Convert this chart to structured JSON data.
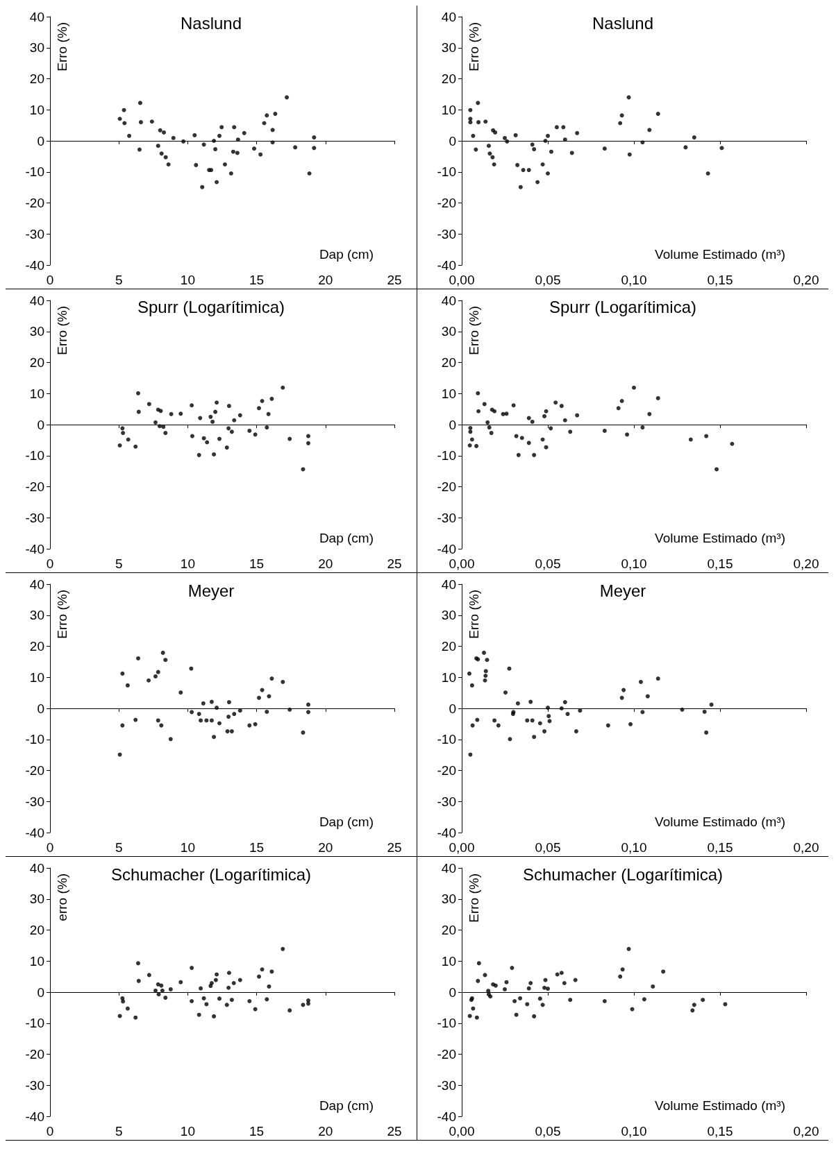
{
  "chart_data": [
    {
      "type": "scatter",
      "title": "Naslund",
      "xlabel": "Dap (cm)",
      "ylabel": "Erro (%)",
      "xlim": [
        0,
        25
      ],
      "xticks": [
        0,
        5,
        10,
        15,
        20,
        25
      ],
      "ylim": [
        -40,
        40
      ],
      "yticks": [
        -40,
        -30,
        -20,
        -10,
        0,
        10,
        20,
        30,
        40
      ],
      "marker": "circle",
      "color": "#000000",
      "x": [
        5.07,
        5.37,
        5.41,
        5.75,
        6.5,
        6.55,
        6.6,
        7.4,
        7.85,
        8.0,
        8.1,
        8.27,
        8.4,
        8.6,
        8.96,
        9.68,
        10.5,
        10.6,
        11.05,
        11.17,
        11.55,
        11.7,
        11.9,
        12.0,
        12.1,
        12.3,
        12.46,
        12.7,
        13.15,
        13.3,
        13.37,
        13.6,
        13.65,
        14.1,
        14.82,
        15.28,
        15.55,
        15.74,
        16.16,
        16.16,
        16.35,
        17.19,
        17.8,
        18.83,
        19.17,
        19.17
      ],
      "values": [
        7.1,
        9.9,
        5.7,
        1.6,
        -2.8,
        12.2,
        6.0,
        6.2,
        -1.6,
        3.4,
        -4.1,
        2.7,
        -5.3,
        -7.6,
        0.9,
        -0.2,
        1.8,
        -7.8,
        -14.9,
        -1.2,
        -9.4,
        -9.4,
        0,
        -2.7,
        -13.3,
        1.6,
        4.4,
        -7.6,
        -10.5,
        -3.5,
        4.4,
        -3.9,
        0.4,
        2.5,
        -2.5,
        -4.4,
        5.7,
        8.2,
        3.5,
        -0.5,
        8.7,
        14.0,
        -2.1,
        -10.5,
        1.1,
        -2.3
      ]
    },
    {
      "type": "scatter",
      "title": "Naslund",
      "xlabel": "Volume Estimado (m³)",
      "ylabel": "Erro (%)",
      "xlim": [
        0,
        0.2
      ],
      "xticks": [
        {
          "value": 0,
          "label": "0,00"
        },
        {
          "value": 0.05,
          "label": "0,05"
        },
        {
          "value": 0.1,
          "label": "0,10"
        },
        {
          "value": 0.15,
          "label": "0,15"
        },
        {
          "value": 0.2,
          "label": "0,20"
        }
      ],
      "ylim": [
        -40,
        40
      ],
      "yticks": [
        -40,
        -30,
        -20,
        -10,
        0,
        10,
        20,
        30,
        40
      ],
      "marker": "circle",
      "color": "#000000",
      "x": [
        0.005,
        0.005,
        0.005,
        0.0066,
        0.0082,
        0.0094,
        0.0097,
        0.0138,
        0.0157,
        0.0163,
        0.0179,
        0.0182,
        0.0188,
        0.0194,
        0.025,
        0.0263,
        0.0313,
        0.0323,
        0.0342,
        0.0357,
        0.039,
        0.041,
        0.042,
        0.044,
        0.047,
        0.0486,
        0.05,
        0.05,
        0.052,
        0.0552,
        0.059,
        0.06,
        0.064,
        0.067,
        0.083,
        0.092,
        0.093,
        0.097,
        0.0975,
        0.105,
        0.109,
        0.114,
        0.13,
        0.135,
        0.143,
        0.151
      ],
      "values": [
        7.1,
        6.0,
        9.9,
        1.6,
        -2.8,
        12.2,
        6.0,
        6.2,
        -1.6,
        -4.1,
        -5.3,
        3.4,
        -7.6,
        2.7,
        0.9,
        -0.2,
        1.8,
        -7.8,
        -14.9,
        -9.4,
        -9.4,
        -1.2,
        -2.7,
        -13.3,
        -7.6,
        0,
        1.6,
        -10.5,
        -3.5,
        4.4,
        4.4,
        0.4,
        -3.9,
        2.5,
        -2.5,
        5.7,
        8.2,
        14.0,
        -4.4,
        -0.5,
        3.5,
        8.7,
        -2.1,
        1.1,
        -10.5,
        -2.3
      ]
    },
    {
      "type": "scatter",
      "title": "Spurr (Logarítimica)",
      "xlabel": "Dap (cm)",
      "ylabel": "Erro (%)",
      "xlim": [
        0,
        25
      ],
      "xticks": [
        0,
        5,
        10,
        15,
        20,
        25
      ],
      "ylim": [
        -40,
        40
      ],
      "yticks": [
        -40,
        -30,
        -20,
        -10,
        0,
        10,
        20,
        30,
        40
      ],
      "marker": "circle",
      "color": "#000000",
      "x": [
        5.07,
        5.26,
        5.3,
        5.68,
        6.21,
        6.4,
        6.44,
        7.2,
        7.66,
        7.85,
        7.96,
        8.04,
        8.23,
        8.38,
        8.8,
        9.49,
        10.29,
        10.33,
        10.82,
        10.9,
        11.17,
        11.4,
        11.66,
        11.8,
        11.9,
        12.0,
        12.1,
        12.3,
        12.84,
        13.0,
        12.96,
        13.2,
        13.37,
        13.8,
        14.48,
        14.9,
        15.17,
        15.4,
        15.74,
        15.86,
        16.1,
        16.9,
        17.4,
        18.37,
        18.75,
        18.75
      ],
      "values": [
        -6.7,
        -1.2,
        -2.7,
        -4.8,
        -7.1,
        10.1,
        4.1,
        6.6,
        0.7,
        4.8,
        -0.5,
        4.4,
        -0.7,
        -2.7,
        3.4,
        3.5,
        6.2,
        -3.7,
        -9.8,
        2.1,
        -4.4,
        -5.7,
        2.5,
        0.9,
        -9.6,
        4.1,
        7.1,
        -4.6,
        -7.4,
        6.0,
        -1.2,
        -2.3,
        1.4,
        3.0,
        -2.0,
        -3.2,
        5.3,
        7.6,
        -0.9,
        3.4,
        8.3,
        11.9,
        -4.6,
        -14.4,
        -3.7,
        -6.0
      ]
    },
    {
      "type": "scatter",
      "title": "Spurr (Logarítimica)",
      "xlabel": "Volume Estimado (m³)",
      "ylabel": "Erro (%)",
      "xlim": [
        0,
        0.2
      ],
      "xticks": [
        {
          "value": 0,
          "label": "0,00"
        },
        {
          "value": 0.05,
          "label": "0,05"
        },
        {
          "value": 0.1,
          "label": "0,10"
        },
        {
          "value": 0.15,
          "label": "0,15"
        },
        {
          "value": 0.2,
          "label": "0,20"
        }
      ],
      "ylim": [
        -40,
        40
      ],
      "yticks": [
        -40,
        -30,
        -20,
        -10,
        0,
        10,
        20,
        30,
        40
      ],
      "marker": "circle",
      "color": "#000000",
      "x": [
        0.0047,
        0.005,
        0.005,
        0.006,
        0.0085,
        0.0094,
        0.0097,
        0.0132,
        0.015,
        0.016,
        0.0172,
        0.0176,
        0.019,
        0.024,
        0.026,
        0.0301,
        0.0317,
        0.033,
        0.035,
        0.039,
        0.039,
        0.041,
        0.042,
        0.047,
        0.048,
        0.049,
        0.049,
        0.0517,
        0.0545,
        0.058,
        0.06,
        0.063,
        0.067,
        0.083,
        0.091,
        0.093,
        0.096,
        0.1,
        0.105,
        0.109,
        0.114,
        0.133,
        0.142,
        0.148,
        0.157
      ],
      "values": [
        -6.7,
        -1.1,
        -2.3,
        -4.8,
        -6.9,
        10.1,
        4.3,
        6.6,
        0.7,
        -0.9,
        -2.7,
        4.8,
        4.3,
        3.4,
        3.5,
        6.2,
        -3.7,
        -9.8,
        -4.3,
        2.1,
        -5.9,
        0.9,
        -9.8,
        -4.8,
        2.7,
        4.3,
        -7.3,
        -1.2,
        7.1,
        6.0,
        1.4,
        -2.3,
        3.0,
        -2.0,
        5.3,
        7.6,
        -3.2,
        11.9,
        -0.9,
        3.4,
        8.5,
        -4.8,
        -3.7,
        -14.4,
        -6.2
      ]
    },
    {
      "type": "scatter",
      "title": "Meyer",
      "xlabel": "Dap (cm)",
      "ylabel": "Erro (%)",
      "xlim": [
        0,
        25
      ],
      "xticks": [
        0,
        5,
        10,
        15,
        20,
        25
      ],
      "ylim": [
        -40,
        40
      ],
      "yticks": [
        -40,
        -30,
        -20,
        -10,
        0,
        10,
        20,
        30,
        40
      ],
      "marker": "circle",
      "color": "#000000",
      "x": [
        5.07,
        5.26,
        5.26,
        5.64,
        6.21,
        6.4,
        7.16,
        7.66,
        7.85,
        7.85,
        8.08,
        8.2,
        8.38,
        8.76,
        9.49,
        10.25,
        10.29,
        10.82,
        10.94,
        11.13,
        11.36,
        11.74,
        11.74,
        11.9,
        12.1,
        12.3,
        12.88,
        12.96,
        13.0,
        13.2,
        13.37,
        13.8,
        14.48,
        14.9,
        15.17,
        15.4,
        15.74,
        15.9,
        16.1,
        16.9,
        17.4,
        18.37,
        18.75,
        18.75
      ],
      "values": [
        -14.9,
        11.2,
        -5.5,
        7.4,
        -3.7,
        16.1,
        9.0,
        10.3,
        11.7,
        -3.9,
        -5.5,
        17.9,
        15.6,
        -9.9,
        5.1,
        12.8,
        -1.2,
        -1.8,
        -3.9,
        1.6,
        -3.9,
        -3.9,
        2.1,
        -9.2,
        0.2,
        -4.8,
        -7.4,
        -2.7,
        2.0,
        -7.4,
        -1.8,
        -0.7,
        -5.5,
        -5.1,
        3.4,
        5.9,
        -1.1,
        3.9,
        9.6,
        8.5,
        -0.4,
        -7.8,
        1.2,
        -1.2
      ]
    },
    {
      "type": "scatter",
      "title": "Meyer",
      "xlabel": "Volume Estimado (m³)",
      "ylabel": "Erro (%)",
      "xlim": [
        0,
        0.2
      ],
      "xticks": [
        {
          "value": 0,
          "label": "0,00"
        },
        {
          "value": 0.05,
          "label": "0,05"
        },
        {
          "value": 0.1,
          "label": "0,10"
        },
        {
          "value": 0.15,
          "label": "0,15"
        },
        {
          "value": 0.2,
          "label": "0,20"
        }
      ],
      "ylim": [
        -40,
        40
      ],
      "yticks": [
        -40,
        -30,
        -20,
        -10,
        0,
        10,
        20,
        30,
        40
      ],
      "marker": "circle",
      "color": "#000000",
      "x": [
        0.0044,
        0.005,
        0.006,
        0.0063,
        0.0085,
        0.009,
        0.0094,
        0.0129,
        0.0135,
        0.0138,
        0.014,
        0.0147,
        0.019,
        0.0213,
        0.0254,
        0.0276,
        0.028,
        0.0298,
        0.03,
        0.0326,
        0.038,
        0.04,
        0.041,
        0.042,
        0.0455,
        0.048,
        0.05,
        0.0505,
        0.051,
        0.058,
        0.06,
        0.0615,
        0.0665,
        0.0687,
        0.085,
        0.093,
        0.094,
        0.098,
        0.104,
        0.105,
        0.108,
        0.114,
        0.128,
        0.141,
        0.142,
        0.145
      ],
      "values": [
        11.2,
        -14.9,
        7.4,
        -5.5,
        16.1,
        -3.7,
        15.8,
        17.9,
        9.0,
        10.5,
        12.0,
        15.6,
        -3.9,
        -5.5,
        5.1,
        12.8,
        -9.9,
        -1.8,
        -1.2,
        1.6,
        -3.9,
        2.1,
        -3.9,
        -9.2,
        -4.8,
        -7.4,
        0.2,
        -2.5,
        -4.1,
        0,
        2.0,
        -1.8,
        -7.4,
        -0.7,
        -5.5,
        3.4,
        5.9,
        -5.1,
        8.5,
        -1.2,
        3.9,
        9.6,
        -0.4,
        -1.1,
        -7.8,
        1.2
      ]
    },
    {
      "type": "scatter",
      "title": "Schumacher (Logarítimica)",
      "xlabel": "Dap (cm)",
      "ylabel": "erro (%)",
      "xlim": [
        0,
        25
      ],
      "xticks": [
        0,
        5,
        10,
        15,
        20,
        25
      ],
      "ylim": [
        -40,
        40
      ],
      "yticks": [
        -40,
        -30,
        -20,
        -10,
        0,
        10,
        20,
        30,
        40
      ],
      "marker": "circle",
      "color": "#000000",
      "x": [
        5.07,
        5.26,
        5.3,
        5.64,
        6.21,
        6.4,
        6.44,
        7.2,
        7.66,
        7.85,
        7.89,
        8.08,
        8.16,
        8.38,
        8.76,
        9.49,
        10.29,
        10.29,
        10.82,
        10.94,
        11.17,
        11.36,
        11.66,
        11.74,
        11.9,
        12.04,
        12.1,
        12.3,
        12.84,
        12.96,
        13.0,
        13.2,
        13.34,
        13.8,
        14.48,
        14.9,
        15.17,
        15.4,
        15.74,
        15.9,
        16.1,
        16.9,
        17.4,
        18.37,
        18.75,
        18.75
      ],
      "values": [
        -7.7,
        -2.0,
        -3.0,
        -5.3,
        -8.2,
        9.3,
        3.6,
        5.5,
        0.5,
        2.5,
        -0.7,
        2.1,
        0.5,
        -1.8,
        0.9,
        3.2,
        7.8,
        -2.9,
        -7.3,
        1.2,
        -2.0,
        -3.9,
        2.0,
        2.9,
        -7.8,
        3.9,
        5.7,
        -2.1,
        -4.1,
        1.4,
        6.2,
        -2.5,
        2.9,
        3.9,
        -2.9,
        -5.5,
        5.0,
        7.3,
        -2.3,
        1.8,
        6.6,
        13.9,
        -5.9,
        -4.1,
        -3.7,
        -2.7
      ]
    },
    {
      "type": "scatter",
      "title": "Schumacher (Logarítimica)",
      "xlabel": "Volume Estimado (m³)",
      "ylabel": "Erro (%)",
      "xlim": [
        0,
        0.2
      ],
      "xticks": [
        {
          "value": 0,
          "label": "0,00"
        },
        {
          "value": 0.05,
          "label": "0,05"
        },
        {
          "value": 0.1,
          "label": "0,10"
        },
        {
          "value": 0.15,
          "label": "0,15"
        },
        {
          "value": 0.2,
          "label": "0,20"
        }
      ],
      "ylim": [
        -40,
        40
      ],
      "yticks": [
        -40,
        -30,
        -20,
        -10,
        0,
        10,
        20,
        30,
        40
      ],
      "marker": "circle",
      "color": "#000000",
      "x": [
        0.0047,
        0.0056,
        0.006,
        0.0066,
        0.0088,
        0.0094,
        0.01,
        0.0135,
        0.0154,
        0.0157,
        0.0166,
        0.0182,
        0.0197,
        0.025,
        0.026,
        0.0292,
        0.0307,
        0.0317,
        0.0339,
        0.038,
        0.039,
        0.04,
        0.042,
        0.0455,
        0.047,
        0.048,
        0.0486,
        0.05,
        0.0555,
        0.058,
        0.0596,
        0.063,
        0.066,
        0.083,
        0.092,
        0.0934,
        0.097,
        0.099,
        0.106,
        0.111,
        0.117,
        0.134,
        0.135,
        0.14,
        0.153
      ],
      "values": [
        -7.7,
        -2.5,
        -2.0,
        -5.3,
        -8.2,
        3.6,
        9.3,
        5.5,
        0.4,
        -0.7,
        -1.4,
        2.5,
        2.1,
        0.9,
        3.2,
        7.8,
        -2.9,
        -7.3,
        -2.0,
        -3.9,
        1.2,
        2.9,
        -7.8,
        -2.1,
        -4.1,
        1.4,
        3.9,
        1.1,
        5.7,
        6.2,
        2.9,
        -2.5,
        3.9,
        -2.9,
        5.0,
        7.3,
        13.9,
        -5.5,
        -2.3,
        1.8,
        6.6,
        -5.9,
        -4.1,
        -2.5,
        -3.9
      ]
    }
  ]
}
